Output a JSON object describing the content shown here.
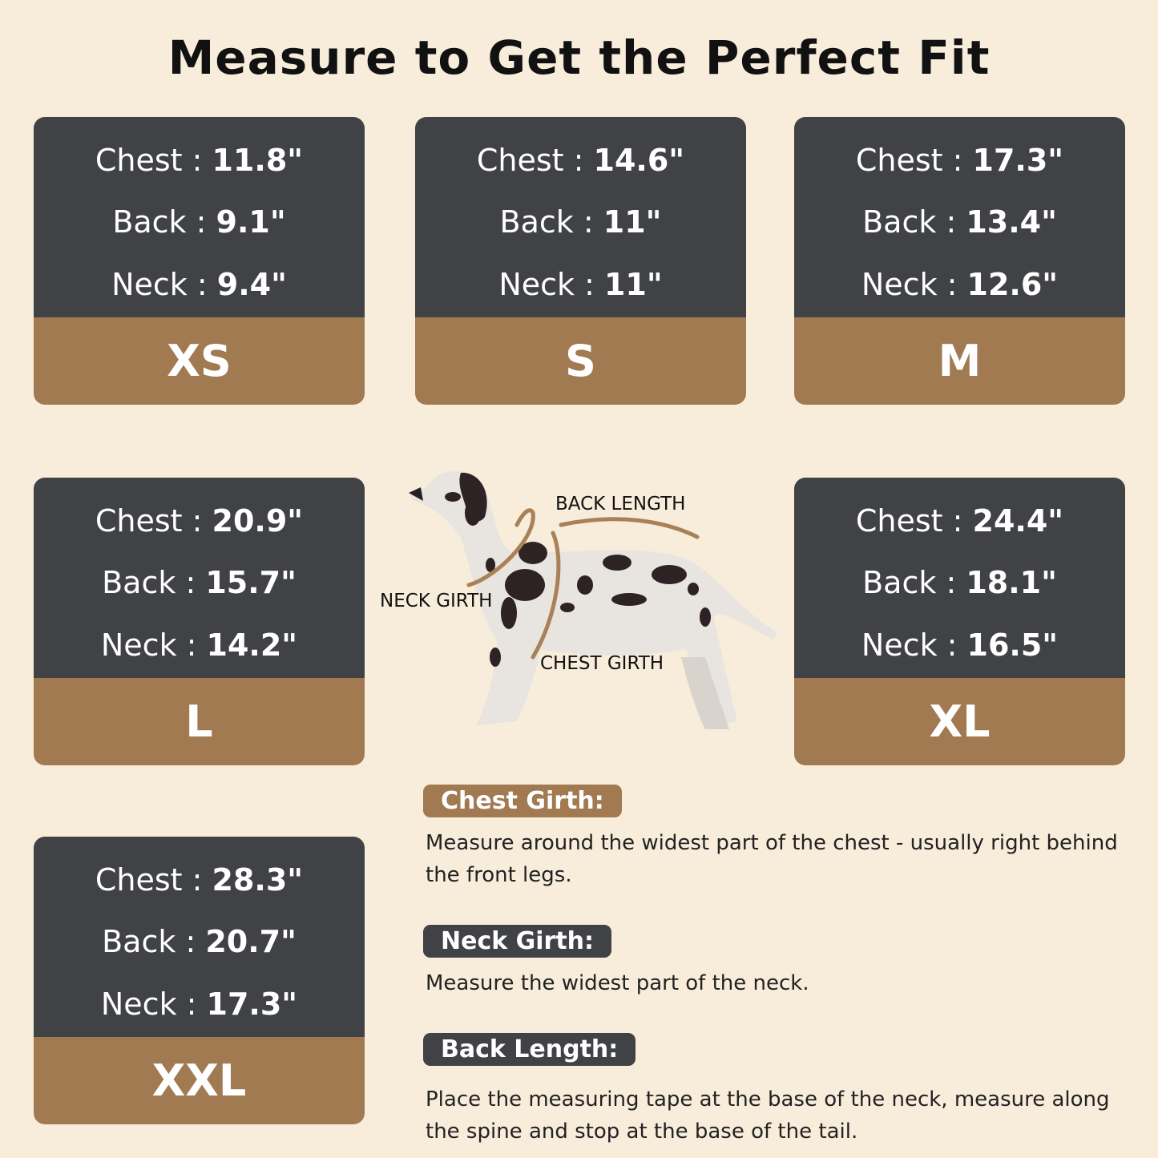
{
  "title": "Measure to Get the Perfect Fit",
  "sizes": [
    {
      "size": "XS",
      "chest_label": "Chest",
      "chest": "11.8\"",
      "back_label": "Back",
      "back": "9.1\"",
      "neck_label": "Neck",
      "neck": "9.4\""
    },
    {
      "size": "S",
      "chest_label": "Chest",
      "chest": "14.6\"",
      "back_label": "Back",
      "back": "11\"",
      "neck_label": "Neck",
      "neck": "11\""
    },
    {
      "size": "M",
      "chest_label": "Chest",
      "chest": "17.3\"",
      "back_label": "Back",
      "back": "13.4\"",
      "neck_label": "Neck",
      "neck": "12.6\""
    },
    {
      "size": "L",
      "chest_label": "Chest",
      "chest": "20.9\"",
      "back_label": "Back",
      "back": "15.7\"",
      "neck_label": "Neck",
      "neck": "14.2\""
    },
    {
      "size": "XL",
      "chest_label": "Chest",
      "chest": "24.4\"",
      "back_label": "Back",
      "back": "18.1\"",
      "neck_label": "Neck",
      "neck": "16.5\""
    },
    {
      "size": "XXL",
      "chest_label": "Chest",
      "chest": "28.3\"",
      "back_label": "Back",
      "back": "20.7\"",
      "neck_label": "Neck",
      "neck": "17.3\""
    }
  ],
  "diagram": {
    "back_length": "BACK LENGTH",
    "neck_girth": "NECK GIRTH",
    "chest_girth": "CHEST GIRTH"
  },
  "guide": {
    "chest": {
      "heading": "Chest Girth:",
      "text": "Measure around the widest part of the chest - usually right behind the front legs."
    },
    "neck": {
      "heading": "Neck Girth:",
      "text": "Measure the widest part of the neck."
    },
    "back": {
      "heading": "Back Length:",
      "text": "Place the measuring tape at the base of the neck, measure along the spine and stop at the base of the tail."
    }
  },
  "colors": {
    "background": "#f8ecdb",
    "card_dark": "#414245",
    "card_brown": "#a17a52"
  }
}
